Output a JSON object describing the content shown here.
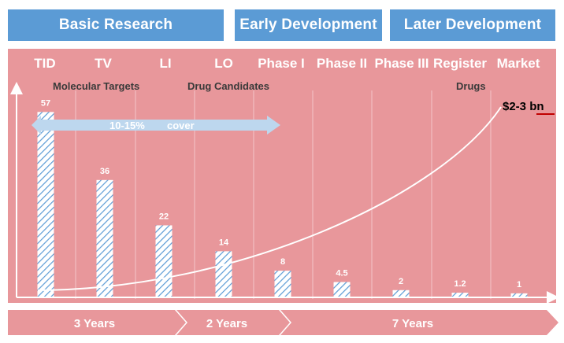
{
  "headers": {
    "basic": "Basic Research",
    "early": "Early Development",
    "later": "Later Development"
  },
  "phases": [
    "TID",
    "TV",
    "LI",
    "LO",
    "Phase I",
    "Phase II",
    "Phase III",
    "Register",
    "Market"
  ],
  "groups": {
    "molecular": "Molecular Targets",
    "candidates": "Drug Candidates",
    "drugs": "Drugs"
  },
  "coverage_arrow": {
    "label": "10-15%",
    "suffix": "cover"
  },
  "timeline": {
    "basic": "3 Years",
    "early": "2 Years",
    "later": "7 Years"
  },
  "chart_data": {
    "type": "bar",
    "categories": [
      "TID",
      "TV",
      "LI",
      "LO",
      "Phase I",
      "Phase II",
      "Phase III",
      "Register",
      "Market"
    ],
    "values": [
      57,
      36,
      22,
      14,
      8,
      4.5,
      2,
      1.2,
      1
    ],
    "value_labels": [
      "57",
      "36",
      "22",
      "14",
      "8",
      "4.5",
      "2",
      "1.2",
      "1"
    ],
    "ylim": [
      0,
      60
    ],
    "title": "",
    "xlabel": "",
    "ylabel": "",
    "cost_curve": {
      "label": "$2-3 bn",
      "shape": "exponential"
    }
  },
  "colors": {
    "panel": "#e8979b",
    "header": "#5b9bd5",
    "arrow": "#bdd7ee",
    "timeline": "#e8979b",
    "hatch": "#5b9bd5",
    "callout_underline": "#c00000"
  }
}
